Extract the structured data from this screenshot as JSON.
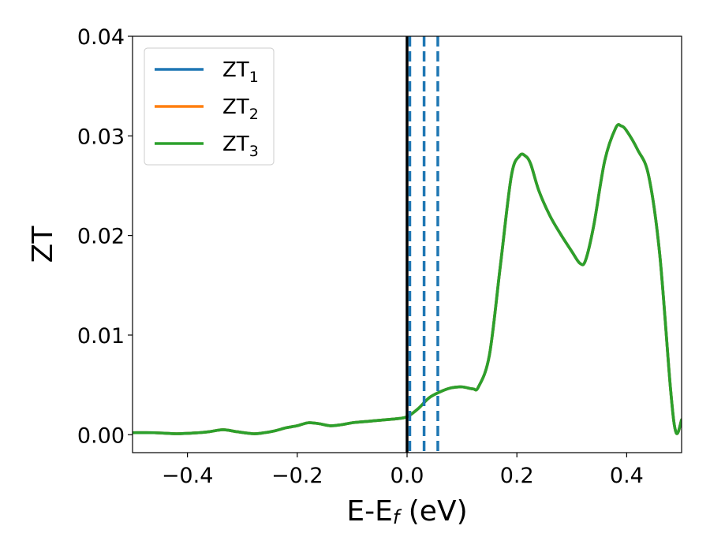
{
  "chart_data": {
    "type": "line",
    "title": "",
    "xlabel": "E-E",
    "xlabel_sub": "f",
    "xlabel_unit": " (eV)",
    "ylabel": "ZT",
    "xlim": [
      -0.5,
      0.5
    ],
    "ylim": [
      -0.0018,
      0.04
    ],
    "x_ticks": [
      -0.4,
      -0.2,
      0.0,
      0.2,
      0.4
    ],
    "x_tick_labels": [
      "−0.4",
      "−0.2",
      "0.0",
      "0.2",
      "0.4"
    ],
    "y_ticks": [
      0.0,
      0.01,
      0.02,
      0.03,
      0.04
    ],
    "y_tick_labels": [
      "0.00",
      "0.01",
      "0.02",
      "0.03",
      "0.04"
    ],
    "grid": false,
    "legend_position": "top-left",
    "fermi_line": {
      "x": 0.0,
      "color": "#000000"
    },
    "dashed_lines": {
      "x": [
        0.005,
        0.031,
        0.056
      ],
      "color": "#1f77b4"
    },
    "x": [
      -0.5,
      -0.46,
      -0.42,
      -0.38,
      -0.36,
      -0.335,
      -0.31,
      -0.28,
      -0.26,
      -0.24,
      -0.22,
      -0.2,
      -0.18,
      -0.16,
      -0.14,
      -0.12,
      -0.1,
      -0.08,
      -0.06,
      -0.04,
      -0.02,
      0.0,
      0.02,
      0.04,
      0.06,
      0.08,
      0.1,
      0.12,
      0.13,
      0.15,
      0.17,
      0.19,
      0.205,
      0.215,
      0.225,
      0.24,
      0.26,
      0.28,
      0.3,
      0.315,
      0.325,
      0.34,
      0.36,
      0.38,
      0.39,
      0.4,
      0.42,
      0.44,
      0.46,
      0.48,
      0.49,
      0.5
    ],
    "series": [
      {
        "name": "ZT",
        "sub": "1",
        "color": "#1f77b4",
        "values": [
          0.0002,
          0.0002,
          0.0001,
          0.0002,
          0.0003,
          0.0005,
          0.0003,
          0.0001,
          0.0002,
          0.0004,
          0.0007,
          0.0009,
          0.0012,
          0.0011,
          0.0009,
          0.001,
          0.0012,
          0.0013,
          0.0014,
          0.0015,
          0.0016,
          0.0018,
          0.0026,
          0.0037,
          0.0043,
          0.0047,
          0.0048,
          0.0046,
          0.0048,
          0.008,
          0.017,
          0.026,
          0.028,
          0.028,
          0.0272,
          0.0245,
          0.022,
          0.0201,
          0.0184,
          0.0172,
          0.0175,
          0.021,
          0.0275,
          0.0308,
          0.031,
          0.0305,
          0.0286,
          0.026,
          0.0182,
          0.0045,
          0.0002,
          0.0015
        ]
      },
      {
        "name": "ZT",
        "sub": "2",
        "color": "#ff7f0e",
        "values": [
          0.0002,
          0.0002,
          0.0001,
          0.0002,
          0.0003,
          0.0005,
          0.0003,
          0.0001,
          0.0002,
          0.0004,
          0.0007,
          0.0009,
          0.0012,
          0.0011,
          0.0009,
          0.001,
          0.0012,
          0.0013,
          0.0014,
          0.0015,
          0.0016,
          0.0018,
          0.0026,
          0.0037,
          0.0043,
          0.0047,
          0.0048,
          0.0046,
          0.0048,
          0.008,
          0.017,
          0.026,
          0.028,
          0.028,
          0.0272,
          0.0245,
          0.022,
          0.0201,
          0.0184,
          0.0172,
          0.0175,
          0.021,
          0.0275,
          0.0308,
          0.031,
          0.0305,
          0.0286,
          0.026,
          0.0182,
          0.0045,
          0.0002,
          0.0015
        ]
      },
      {
        "name": "ZT",
        "sub": "3",
        "color": "#2ca02c",
        "values": [
          0.0002,
          0.0002,
          0.0001,
          0.0002,
          0.0003,
          0.0005,
          0.0003,
          0.0001,
          0.0002,
          0.0004,
          0.0007,
          0.0009,
          0.0012,
          0.0011,
          0.0009,
          0.001,
          0.0012,
          0.0013,
          0.0014,
          0.0015,
          0.0016,
          0.0018,
          0.0026,
          0.0037,
          0.0043,
          0.0047,
          0.0048,
          0.0046,
          0.0048,
          0.008,
          0.017,
          0.026,
          0.028,
          0.028,
          0.0272,
          0.0245,
          0.022,
          0.0201,
          0.0184,
          0.0172,
          0.0175,
          0.021,
          0.0275,
          0.0308,
          0.031,
          0.0305,
          0.0286,
          0.026,
          0.0182,
          0.0045,
          0.0002,
          0.0015
        ]
      }
    ]
  }
}
